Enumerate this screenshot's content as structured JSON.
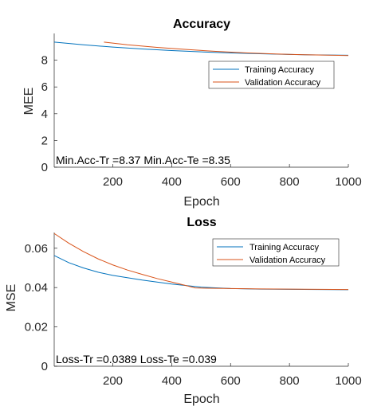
{
  "chart_data": [
    {
      "type": "line",
      "title": "Accuracy",
      "xlabel": "Epoch",
      "ylabel": "MEE",
      "xlim": [
        1,
        1000
      ],
      "ylim": [
        0,
        10
      ],
      "xticks": [
        200,
        400,
        600,
        800,
        1000
      ],
      "yticks": [
        0,
        2,
        4,
        6,
        8
      ],
      "legend_position": "upper-right",
      "annotation": "Min.Acc-Tr =8.37 Min.Acc-Te =8.35",
      "colors": {
        "training": "#0072BD",
        "validation": "#D95319"
      },
      "series": [
        {
          "name": "Training Accuracy",
          "x": [
            1,
            100,
            200,
            300,
            400,
            500,
            600,
            700,
            800,
            900,
            1000
          ],
          "y": [
            9.35,
            9.15,
            8.98,
            8.84,
            8.72,
            8.62,
            8.54,
            8.48,
            8.43,
            8.39,
            8.37
          ]
        },
        {
          "name": "Validation  Accuracy",
          "x": [
            170,
            250,
            350,
            450,
            550,
            650,
            750,
            850,
            950,
            1000
          ],
          "y": [
            9.35,
            9.15,
            8.96,
            8.8,
            8.66,
            8.55,
            8.47,
            8.41,
            8.37,
            8.35
          ]
        }
      ]
    },
    {
      "type": "line",
      "title": "Loss",
      "xlabel": "Epoch",
      "ylabel": "MSE",
      "xlim": [
        1,
        1000
      ],
      "ylim": [
        0,
        0.068
      ],
      "xticks": [
        200,
        400,
        600,
        800,
        1000
      ],
      "yticks": [
        0,
        0.02,
        0.04,
        0.06
      ],
      "legend_position": "upper-right",
      "annotation": "Loss-Tr =0.0389 Loss-Te =0.039",
      "colors": {
        "training": "#0072BD",
        "validation": "#D95319"
      },
      "series": [
        {
          "name": "Training Accuracy",
          "x": [
            1,
            50,
            100,
            150,
            200,
            300,
            400,
            500,
            600,
            700,
            800,
            900,
            1000
          ],
          "y": [
            0.0563,
            0.0527,
            0.05,
            0.0478,
            0.0462,
            0.0438,
            0.0418,
            0.0402,
            0.0395,
            0.0392,
            0.0391,
            0.039,
            0.0389
          ]
        },
        {
          "name": "Validation  Accuracy",
          "x": [
            1,
            50,
            100,
            150,
            200,
            250,
            300,
            350,
            400,
            450,
            480,
            600,
            700,
            800,
            900,
            1000
          ],
          "y": [
            0.0675,
            0.0626,
            0.0583,
            0.0546,
            0.0515,
            0.0489,
            0.0467,
            0.0446,
            0.0428,
            0.041,
            0.0398,
            0.0395,
            0.0393,
            0.0392,
            0.0391,
            0.039
          ]
        }
      ]
    }
  ]
}
